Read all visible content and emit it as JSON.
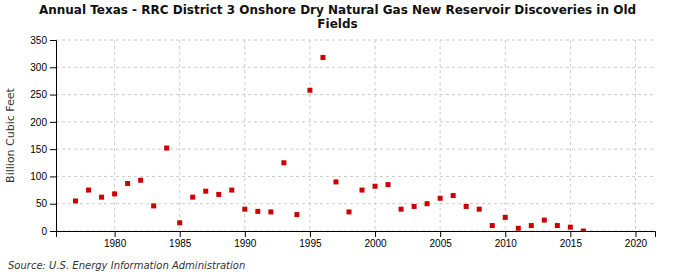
{
  "chart_data": {
    "type": "scatter",
    "title": "Annual Texas - RRC District 3 Onshore Dry Natural Gas New Reservoir Discoveries in Old\nFields",
    "y_label": "Billion Cubic Feet",
    "source": "Source: U.S. Energy Information Administration",
    "color": "#cc0000",
    "marker": "square",
    "grid": true,
    "xlim": [
      1975.5,
      2021.5
    ],
    "ylim": [
      0,
      350
    ],
    "xticks": [
      1980,
      1985,
      1990,
      1995,
      2000,
      2005,
      2010,
      2015,
      2020
    ],
    "yticks": [
      0,
      50,
      100,
      150,
      200,
      250,
      300,
      350
    ],
    "x": [
      1977,
      1978,
      1979,
      1980,
      1981,
      1982,
      1983,
      1984,
      1985,
      1986,
      1987,
      1988,
      1989,
      1990,
      1991,
      1992,
      1993,
      1994,
      1995,
      1996,
      1997,
      1998,
      1999,
      2000,
      2001,
      2002,
      2003,
      2004,
      2005,
      2006,
      2007,
      2008,
      2009,
      2010,
      2011,
      2012,
      2013,
      2014,
      2015,
      2016
    ],
    "values": [
      55,
      75,
      62,
      68,
      87,
      93,
      46,
      152,
      15,
      62,
      73,
      67,
      75,
      40,
      36,
      35,
      125,
      30,
      258,
      318,
      90,
      35,
      75,
      82,
      85,
      40,
      45,
      50,
      60,
      65,
      45,
      40,
      10,
      25,
      5,
      10,
      20,
      10,
      7,
      0
    ]
  }
}
